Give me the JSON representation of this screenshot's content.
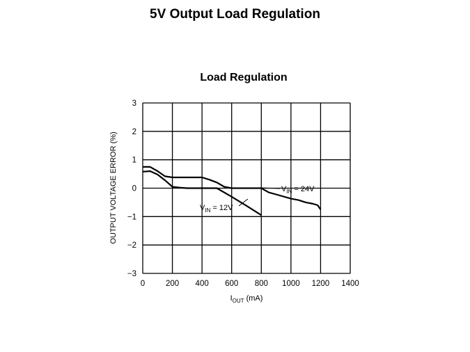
{
  "slide": {
    "title": "5V Output Load Regulation"
  },
  "chart_data": {
    "type": "line",
    "title": "Load Regulation",
    "xlabel": {
      "main": "I",
      "sub": "OUT",
      "tail": " (mA)"
    },
    "ylabel": "OUTPUT VOLTAGE ERROR (%)",
    "xlim": [
      0,
      1400
    ],
    "ylim": [
      -3,
      3
    ],
    "x_ticks": [
      0,
      200,
      400,
      600,
      800,
      1000,
      1200,
      1400
    ],
    "y_ticks": [
      3,
      2,
      1,
      0,
      -1,
      -2,
      -3
    ],
    "y_tick_labels": [
      "3",
      "2",
      "1",
      "0",
      "−1",
      "−2",
      "−3"
    ],
    "grid": true,
    "series": [
      {
        "label": {
          "main": "V",
          "sub": "IN",
          "tail": " = 12V"
        },
        "x": [
          0,
          50,
          100,
          150,
          200,
          250,
          300,
          400,
          500,
          600,
          700,
          800
        ],
        "y": [
          0.58,
          0.6,
          0.48,
          0.28,
          0.05,
          0.02,
          0.0,
          0.0,
          0.0,
          -0.3,
          -0.62,
          -0.95
        ]
      },
      {
        "label": {
          "main": "V",
          "sub": "IN",
          "tail": " = 24V"
        },
        "x": [
          0,
          50,
          100,
          150,
          200,
          300,
          400,
          450,
          500,
          550,
          600,
          700,
          750,
          800,
          850,
          900,
          1000,
          1050,
          1100,
          1150,
          1180,
          1200
        ],
        "y": [
          0.75,
          0.75,
          0.6,
          0.42,
          0.38,
          0.38,
          0.38,
          0.3,
          0.2,
          0.05,
          0.0,
          0.0,
          0.0,
          0.0,
          -0.15,
          -0.22,
          -0.37,
          -0.42,
          -0.5,
          -0.55,
          -0.6,
          -0.75
        ]
      }
    ]
  }
}
